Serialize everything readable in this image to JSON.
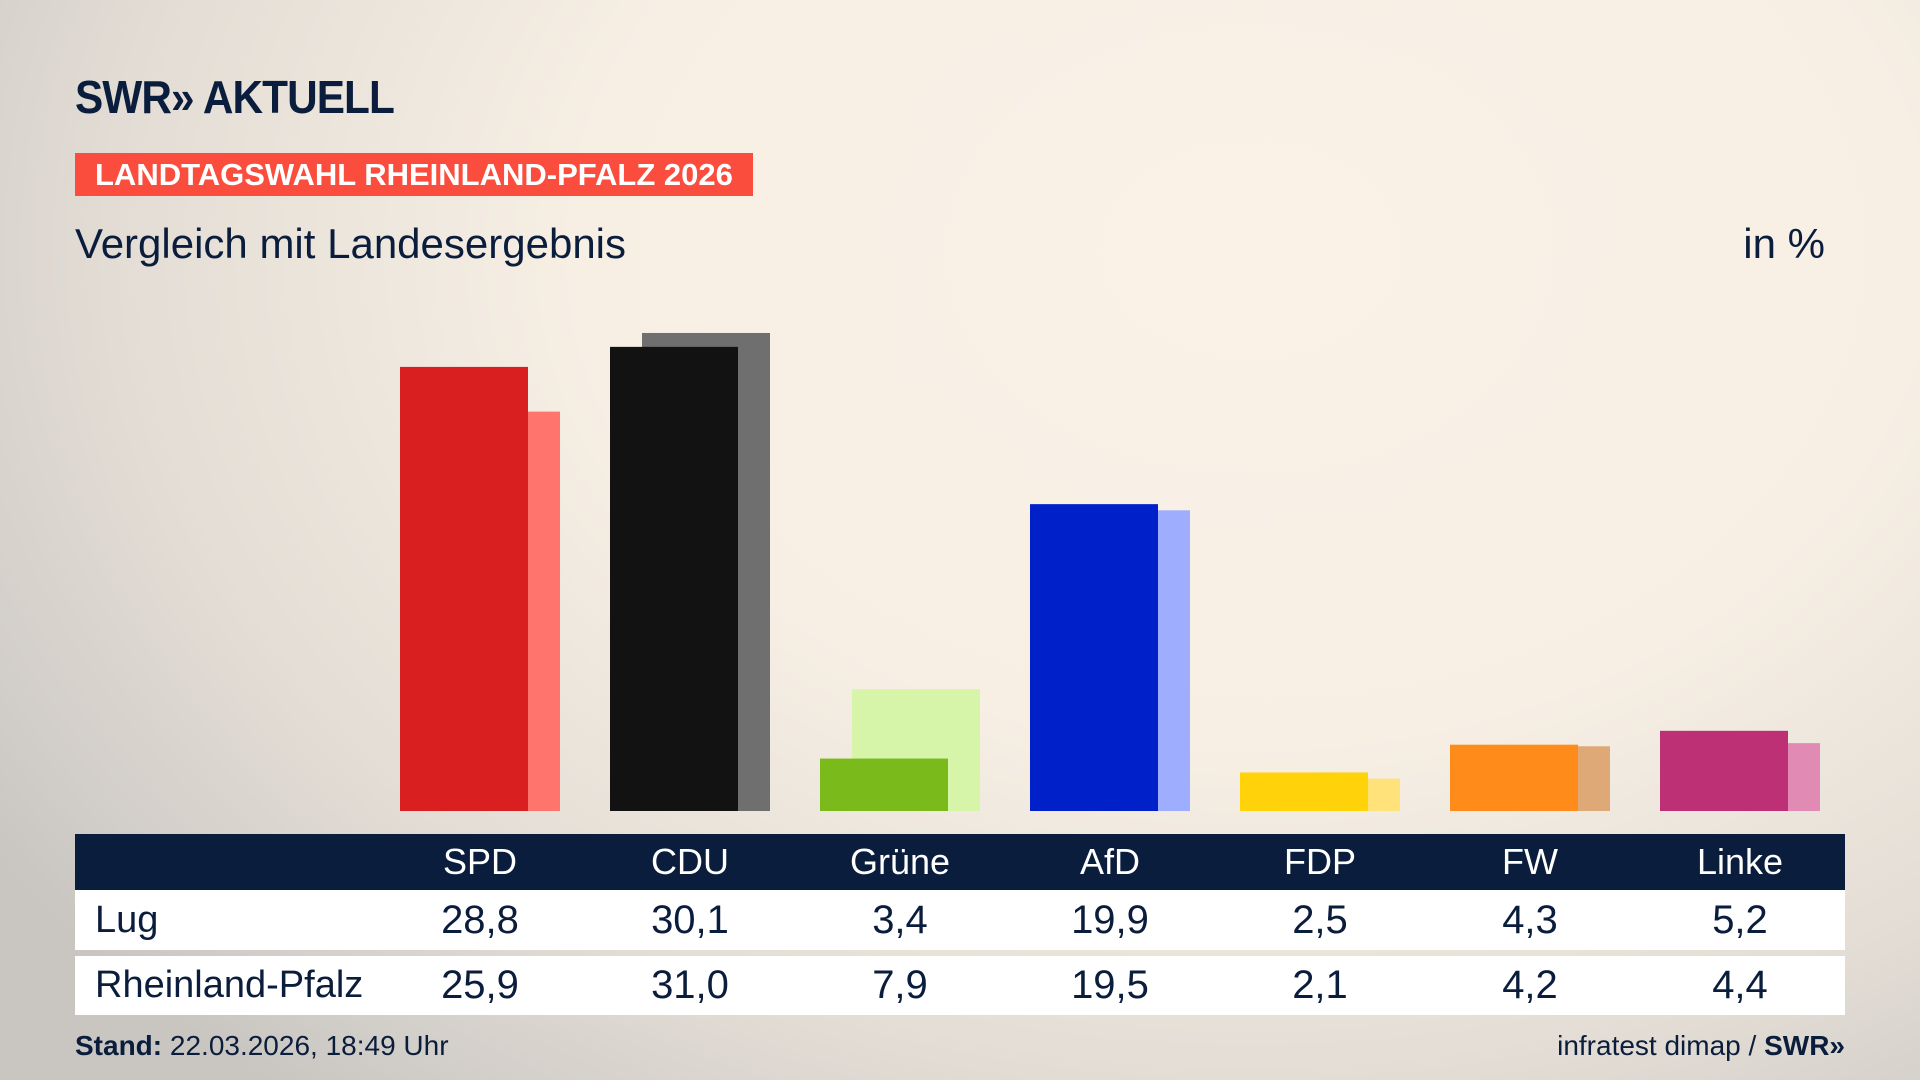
{
  "header": {
    "logo": "SWR» AKTUELL",
    "badge": "LANDTAGSWAHL RHEINLAND-PFALZ 2026",
    "subtitle": "Vergleich mit Landesergebnis",
    "unit": "in %"
  },
  "chart_data": {
    "type": "bar",
    "categories": [
      "SPD",
      "CDU",
      "Grüne",
      "AfD",
      "FDP",
      "FW",
      "Linke"
    ],
    "series": [
      {
        "name": "Lug",
        "values": [
          28.8,
          30.1,
          3.4,
          19.9,
          2.5,
          4.3,
          5.2
        ],
        "colors": [
          "#d91f1f",
          "#121212",
          "#7aba1b",
          "#0021c9",
          "#ffd20a",
          "#ff8c1a",
          "#be3075"
        ]
      },
      {
        "name": "Rheinland-Pfalz",
        "values": [
          25.9,
          31.0,
          7.9,
          19.5,
          2.1,
          4.2,
          4.4
        ],
        "colors": [
          "#ff756d",
          "#6f6f6f",
          "#d6f5a9",
          "#9fadff",
          "#ffe27a",
          "#dfa877",
          "#e08ab4"
        ]
      }
    ],
    "ylim": [
      0,
      31.0
    ]
  },
  "table": {
    "headers": [
      "SPD",
      "CDU",
      "Grüne",
      "AfD",
      "FDP",
      "FW",
      "Linke"
    ],
    "rows": [
      {
        "label": "Lug",
        "values": [
          "28,8",
          "30,1",
          "3,4",
          "19,9",
          "2,5",
          "4,3",
          "5,2"
        ]
      },
      {
        "label": "Rheinland-Pfalz",
        "values": [
          "25,9",
          "31,0",
          "7,9",
          "19,5",
          "2,1",
          "4,2",
          "4,4"
        ]
      }
    ]
  },
  "footer": {
    "stand_label": "Stand:",
    "stand_value": " 22.03.2026, 18:49 Uhr",
    "source": "infratest dimap / ",
    "source_logo": "SWR»"
  }
}
